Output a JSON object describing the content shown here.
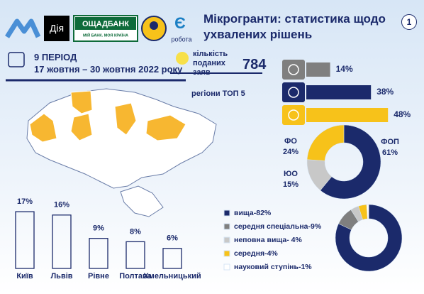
{
  "logos": {
    "diia": "Дія",
    "oschadbank": "ОЩАДБАНК",
    "oschadbank_slogan": "МІЙ БАНК. МОЯ КРАЇНА",
    "robota_mark": "Є",
    "robota": "робота"
  },
  "header": {
    "title": "Мікрогранти: статистика щодо ухвалених рішень",
    "page": "1"
  },
  "period": {
    "label": "9 ПЕРІОД",
    "dates": "17 жовтня – 30 жовтня 2022 року"
  },
  "applications": {
    "label": "кількість поданих заяв",
    "value": "784"
  },
  "map": {
    "label": "регіони ТОП 5"
  },
  "chart_data": [
    {
      "type": "bar",
      "orientation": "horizontal",
      "categories": [
        null,
        null,
        null
      ],
      "values": [
        14,
        38,
        48
      ],
      "value_labels": [
        "14%",
        "38%",
        "48%"
      ],
      "colors": [
        "#7f7f7f",
        "#1b2a6b",
        "#f7c21a"
      ]
    },
    {
      "type": "pie",
      "categories": [
        "ФОП",
        "ЮО",
        "ФО"
      ],
      "values": [
        61,
        15,
        24
      ],
      "value_labels": [
        "61%",
        "15%",
        "24%"
      ],
      "colors": [
        "#1b2a6b",
        "#c8c8c8",
        "#f7c21a"
      ]
    },
    {
      "type": "bar",
      "orientation": "vertical",
      "categories": [
        "Київ",
        "Львів",
        "Рівне",
        "Полтава",
        "Хмельницький"
      ],
      "values": [
        17,
        16,
        9,
        8,
        6
      ],
      "value_labels": [
        "17%",
        "16%",
        "9%",
        "8%",
        "6%"
      ],
      "color": "#1b2a6b"
    },
    {
      "type": "pie",
      "legend": true,
      "categories": [
        "вища-82%",
        "середня спеціальна-9%",
        "неповна вища- 4%",
        "середня-4%",
        "науковий ступінь-1%"
      ],
      "values": [
        82,
        9,
        4,
        4,
        1
      ],
      "colors": [
        "#1b2a6b",
        "#7f7f7f",
        "#c8c8c8",
        "#f7c21a",
        "#ffffff"
      ]
    }
  ]
}
